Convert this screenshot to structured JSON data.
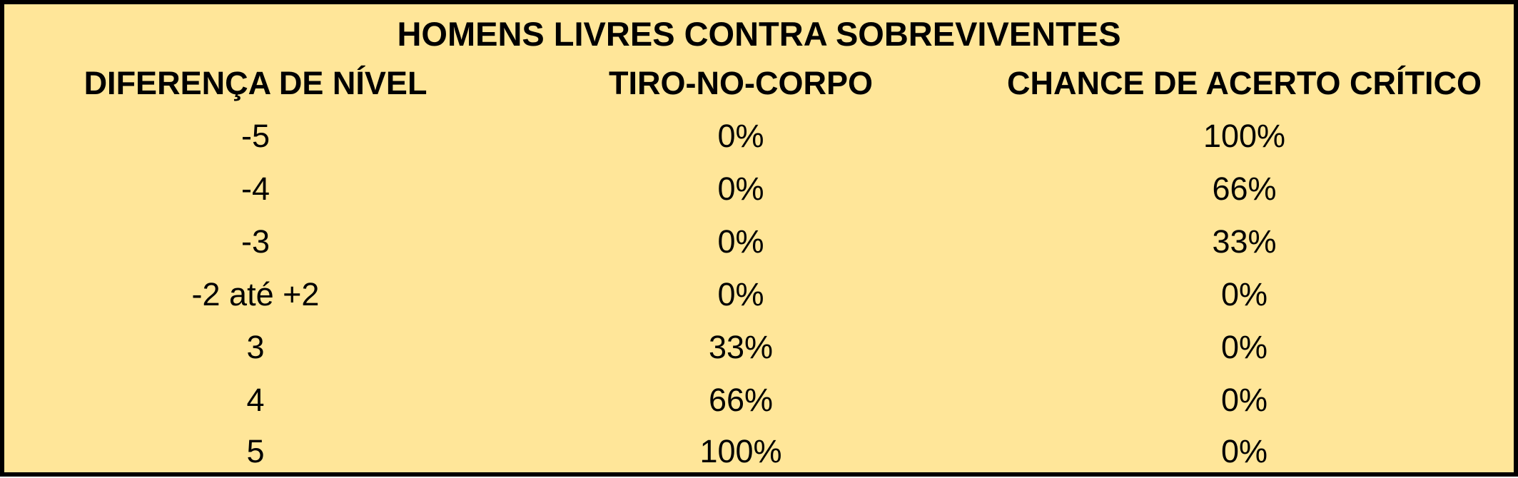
{
  "title": "HOMENS LIVRES CONTRA SOBREVIVENTES",
  "columns": [
    "DIFERENÇA DE NÍVEL",
    "TIRO-NO-CORPO",
    "CHANCE DE ACERTO CRÍTICO"
  ],
  "rows": [
    [
      "-5",
      "0%",
      "100%"
    ],
    [
      "-4",
      "0%",
      "66%"
    ],
    [
      "-3",
      "0%",
      "33%"
    ],
    [
      "-2 até +2",
      "0%",
      "0%"
    ],
    [
      "3",
      "33%",
      "0%"
    ],
    [
      "4",
      "66%",
      "0%"
    ],
    [
      "5",
      "100%",
      "0%"
    ]
  ],
  "colors": {
    "background": "#ffe699",
    "border": "#000000",
    "text": "#000000"
  }
}
